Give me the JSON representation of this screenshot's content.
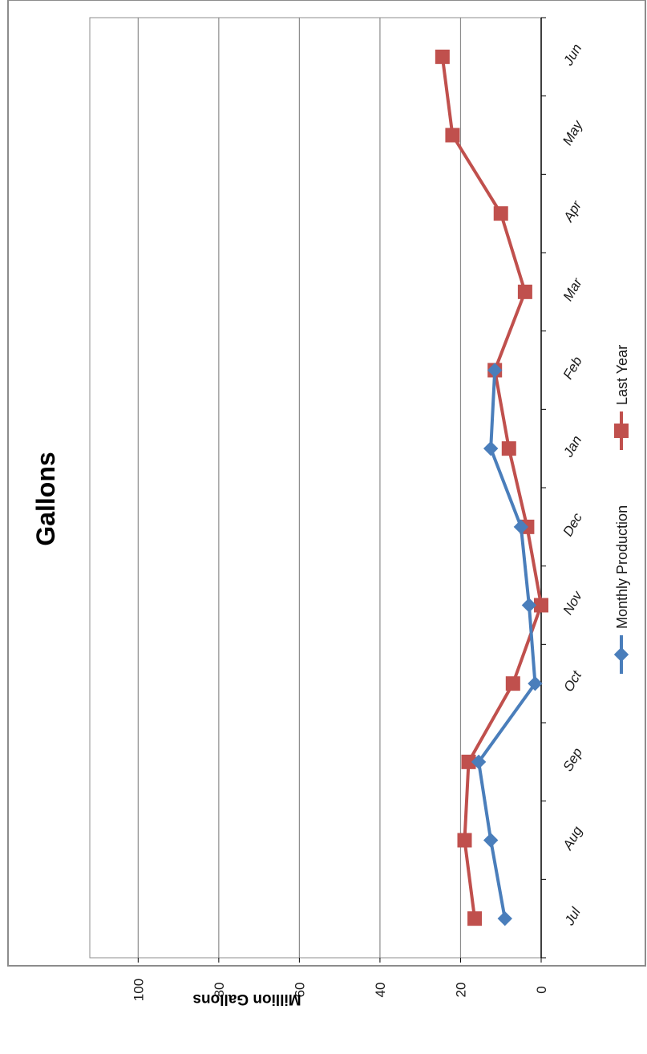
{
  "chart_data": {
    "type": "line",
    "title": "Gallons",
    "xlabel": "",
    "ylabel": "Million Gallons",
    "categories": [
      "Jul",
      "Aug",
      "Sep",
      "Oct",
      "Nov",
      "Dec",
      "Jan",
      "Feb",
      "Mar",
      "Apr",
      "May",
      "Jun"
    ],
    "y_ticks": [
      "0",
      "20",
      "40",
      "60",
      "80",
      "100"
    ],
    "ylim": [
      0,
      112
    ],
    "grid": true,
    "legend_position": "bottom",
    "series": [
      {
        "name": "Monthly Production",
        "color": "#4a7ebb",
        "marker": "diamond",
        "values": [
          9,
          12.5,
          15.5,
          1.5,
          3,
          5,
          12.5,
          11.5,
          null,
          null,
          null,
          null
        ]
      },
      {
        "name": "Last Year",
        "color": "#c0504d",
        "marker": "square",
        "values": [
          16.5,
          19,
          18,
          7,
          0,
          3.5,
          8,
          11.5,
          4,
          10,
          22,
          24.5
        ]
      }
    ]
  }
}
